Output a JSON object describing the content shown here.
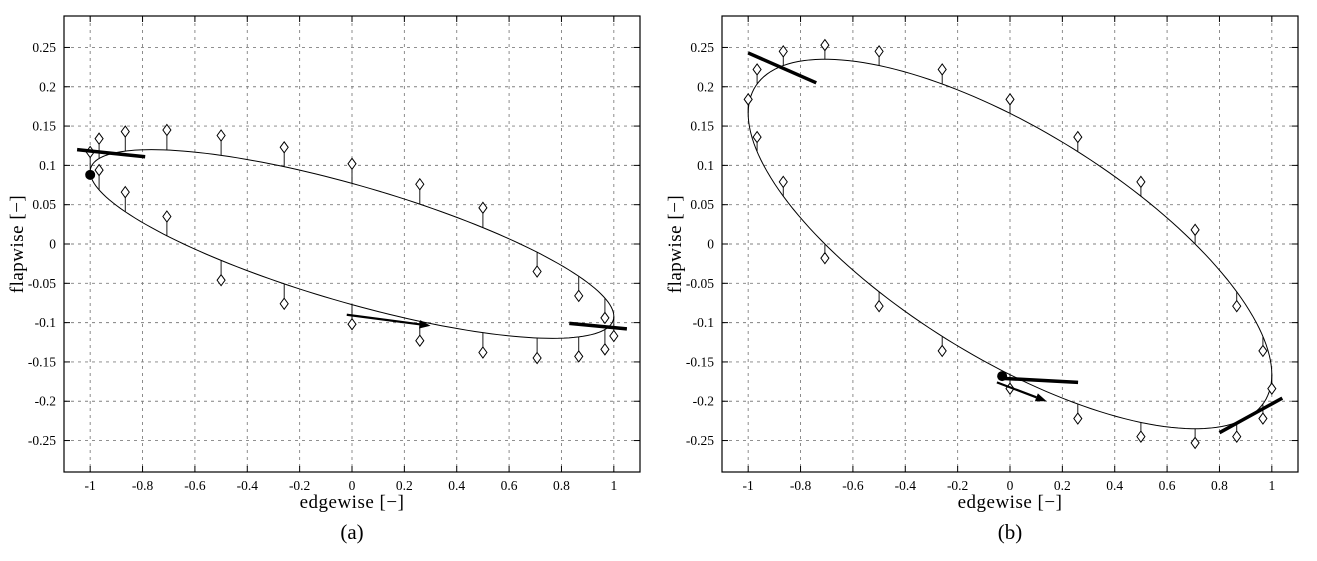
{
  "figure": {
    "background": "#ffffff",
    "ink_color": "#000000",
    "grid_color": "#808080"
  },
  "chart_data": [
    {
      "type": "line",
      "caption": "(a)",
      "xlabel": "edgewise  [−]",
      "ylabel": "flapwise  [−]",
      "xlim": [
        -1.1,
        1.1
      ],
      "ylim": [
        -0.29,
        0.29
      ],
      "grid": "dashed",
      "legend": "none",
      "xticks": [
        -1,
        -0.8,
        -0.6,
        -0.4,
        -0.2,
        0,
        0.2,
        0.4,
        0.6,
        0.8,
        1
      ],
      "xtick_labels": [
        "-1",
        "-0.8",
        "-0.6",
        "-0.4",
        "-0.2",
        "0",
        "0.2",
        "0.4",
        "0.6",
        "0.8",
        "1"
      ],
      "yticks": [
        -0.25,
        -0.2,
        -0.15,
        -0.1,
        -0.05,
        0,
        0.05,
        0.1,
        0.15,
        0.2,
        0.25
      ],
      "ytick_labels": [
        "-0.25",
        "-0.2",
        "-0.15",
        "-0.1",
        "-0.05",
        "0",
        "0.05",
        "0.1",
        "0.15",
        "0.2",
        "0.25"
      ],
      "ellipse": {
        "amp_x": 1.0,
        "amp_y": 0.12,
        "phase_deg": -50
      },
      "markers": [
        [
          1,
          -0.117,
          -0.092
        ],
        [
          0.966,
          -0.094,
          -0.069
        ],
        [
          0.866,
          -0.066,
          -0.041
        ],
        [
          0.707,
          -0.035,
          -0.01
        ],
        [
          0.5,
          0.046,
          0.021
        ],
        [
          0.259,
          0.076,
          0.051
        ],
        [
          0,
          0.102,
          0.077
        ],
        [
          -0.259,
          0.123,
          0.098
        ],
        [
          -0.5,
          0.138,
          0.113
        ],
        [
          -0.707,
          0.145,
          0.12
        ],
        [
          -0.866,
          0.143,
          0.118
        ],
        [
          -0.966,
          0.134,
          0.109
        ],
        [
          -1,
          0.117,
          0.092
        ],
        [
          -0.966,
          0.094,
          0.069
        ],
        [
          -0.866,
          0.066,
          0.041
        ],
        [
          -0.707,
          0.035,
          0.01
        ],
        [
          -0.5,
          -0.046,
          -0.021
        ],
        [
          -0.259,
          -0.076,
          -0.051
        ],
        [
          0,
          -0.102,
          -0.077
        ],
        [
          0.259,
          -0.123,
          -0.098
        ],
        [
          0.5,
          -0.138,
          -0.113
        ],
        [
          0.707,
          -0.145,
          -0.12
        ],
        [
          0.866,
          -0.143,
          -0.118
        ],
        [
          0.966,
          -0.134,
          -0.109
        ]
      ],
      "dot": [
        -1.0,
        0.088
      ],
      "segments": [
        [
          -1.05,
          0.12,
          -0.79,
          0.111
        ],
        [
          0.83,
          -0.101,
          1.05,
          -0.108
        ]
      ],
      "arrow": [
        -0.02,
        -0.09,
        0.3,
        -0.104
      ]
    },
    {
      "type": "line",
      "caption": "(b)",
      "xlabel": "edgewise  [−]",
      "ylabel": "flapwise  [−]",
      "xlim": [
        -1.1,
        1.1
      ],
      "ylim": [
        -0.29,
        0.29
      ],
      "grid": "dashed",
      "legend": "none",
      "xticks": [
        -1,
        -0.8,
        -0.6,
        -0.4,
        -0.2,
        0,
        0.2,
        0.4,
        0.6,
        0.8,
        1
      ],
      "xtick_labels": [
        "-1",
        "-0.8",
        "-0.6",
        "-0.4",
        "-0.2",
        "0",
        "0.2",
        "0.4",
        "0.6",
        "0.8",
        "1"
      ],
      "yticks": [
        -0.25,
        -0.2,
        -0.15,
        -0.1,
        -0.05,
        0,
        0.05,
        0.1,
        0.15,
        0.2,
        0.25
      ],
      "ytick_labels": [
        "-0.25",
        "-0.2",
        "-0.15",
        "-0.1",
        "-0.05",
        "0",
        "0.05",
        "0.1",
        "0.15",
        "0.2",
        "0.25"
      ],
      "ellipse": {
        "amp_x": 1.0,
        "amp_y": 0.235,
        "phase_deg": -45
      },
      "markers": [
        [
          1,
          -0.184,
          -0.166
        ],
        [
          0.966,
          -0.136,
          -0.118
        ],
        [
          0.866,
          -0.079,
          -0.061
        ],
        [
          0.707,
          0.018,
          0
        ],
        [
          0.5,
          0.079,
          0.061
        ],
        [
          0.259,
          0.136,
          0.118
        ],
        [
          0,
          0.184,
          0.166
        ],
        [
          -0.259,
          0.222,
          0.204
        ],
        [
          -0.5,
          0.245,
          0.227
        ],
        [
          -0.707,
          0.253,
          0.235
        ],
        [
          -0.866,
          0.245,
          0.227
        ],
        [
          -0.966,
          0.222,
          0.204
        ],
        [
          -1,
          0.184,
          0.166
        ],
        [
          -0.966,
          0.136,
          0.118
        ],
        [
          -0.866,
          0.079,
          0.061
        ],
        [
          -0.707,
          -0.018,
          0
        ],
        [
          -0.5,
          -0.079,
          -0.061
        ],
        [
          -0.259,
          -0.136,
          -0.118
        ],
        [
          0,
          -0.184,
          -0.166
        ],
        [
          0.259,
          -0.222,
          -0.204
        ],
        [
          0.5,
          -0.245,
          -0.227
        ],
        [
          0.707,
          -0.253,
          -0.235
        ],
        [
          0.866,
          -0.245,
          -0.227
        ],
        [
          0.966,
          -0.222,
          -0.204
        ]
      ],
      "dot": [
        -0.03,
        -0.168
      ],
      "segments": [
        [
          -1.0,
          0.243,
          -0.74,
          0.205
        ],
        [
          0.8,
          -0.24,
          1.04,
          -0.196
        ],
        [
          -0.02,
          -0.171,
          0.26,
          -0.176
        ]
      ],
      "arrow": [
        -0.05,
        -0.176,
        0.14,
        -0.2
      ]
    }
  ]
}
